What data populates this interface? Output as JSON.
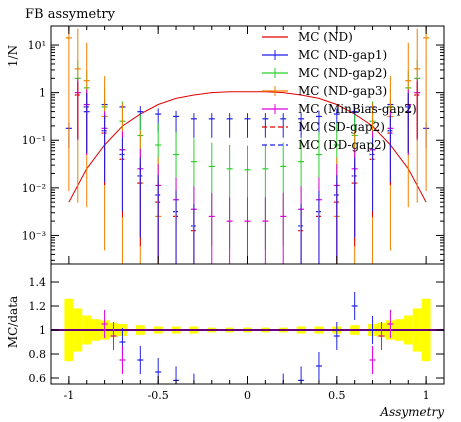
{
  "chart_data": {
    "type": "scatter",
    "title": "FB assymetry",
    "xlabel": "Assymetry",
    "ylabel_top": "1/N",
    "ylabel_bottom": "MC/data",
    "x_range": [
      -1.1,
      1.1
    ],
    "y_range_top_log10": [
      -3.6,
      1.4
    ],
    "y_range_bottom": [
      0.55,
      1.55
    ],
    "x_ticks": [
      "-1",
      "-0.5",
      "0",
      "0.5",
      "1"
    ],
    "y_ticks_top": [
      {
        "label": "10⁻³",
        "log": -3
      },
      {
        "label": "10⁻²",
        "log": -2
      },
      {
        "label": "10⁻¹",
        "log": -1
      },
      {
        "label": "1",
        "log": 0
      },
      {
        "label": "10¹",
        "log": 1
      }
    ],
    "y_ticks_bottom": [
      "0.6",
      "0.8",
      "1",
      "1.2",
      "1.4"
    ],
    "legend": [
      {
        "name": "MC (ND)",
        "color": "#e00000",
        "dash": false
      },
      {
        "name": "MC (ND-gap1)",
        "color": "#1f1fe6",
        "dash": false
      },
      {
        "name": "MC (ND-gap2)",
        "color": "#2ad02a",
        "dash": false
      },
      {
        "name": "MC (ND-gap3)",
        "color": "#f08000",
        "dash": false
      },
      {
        "name": "MC (MinBias-gap2)",
        "color": "#e000e0",
        "dash": false
      },
      {
        "name": "MC (SD-gap2)",
        "color": "#e00000",
        "dash": true
      },
      {
        "name": "MC (DD-gap2)",
        "color": "#1f1fe6",
        "dash": true
      }
    ],
    "series": [
      {
        "name": "MC (ND)",
        "x": [
          -1.0,
          -0.9,
          -0.8,
          -0.7,
          -0.6,
          -0.5,
          -0.4,
          -0.3,
          -0.2,
          -0.1,
          0.0,
          0.1,
          0.2,
          0.3,
          0.4,
          0.5,
          0.6,
          0.7,
          0.8,
          0.9,
          1.0
        ],
        "log10y": [
          -2.3,
          -1.6,
          -1.1,
          -0.7,
          -0.45,
          -0.25,
          -0.12,
          -0.05,
          0.0,
          0.02,
          0.02,
          0.02,
          0.0,
          -0.05,
          -0.12,
          -0.25,
          -0.45,
          -0.7,
          -1.1,
          -1.6,
          -2.3
        ]
      },
      {
        "name": "MC (ND-gap1)",
        "x": [
          -1.0,
          -0.9,
          -0.8,
          -0.7,
          -0.6,
          -0.5,
          -0.4,
          -0.3,
          -0.2,
          -0.1,
          0.0,
          0.1,
          0.2,
          0.3,
          0.4,
          0.5,
          0.6,
          0.7,
          0.8,
          0.9,
          1.0
        ],
        "log10y": [
          -0.75,
          -0.4,
          -0.25,
          -0.3,
          -0.4,
          -0.45,
          -0.5,
          -0.55,
          -0.55,
          -0.55,
          -0.55,
          -0.55,
          -0.55,
          -0.55,
          -0.5,
          -0.45,
          -0.4,
          -0.3,
          -0.25,
          -0.4,
          -0.75
        ]
      },
      {
        "name": "MC (ND-gap2)",
        "x": [
          -0.95,
          -0.9,
          -0.8,
          -0.7,
          -0.6,
          -0.5,
          -0.4,
          -0.3,
          -0.2,
          -0.1,
          0.0,
          0.1,
          0.2,
          0.3,
          0.4,
          0.5,
          0.6,
          0.7,
          0.8,
          0.9,
          0.95
        ],
        "log10y": [
          0.3,
          0.1,
          -0.3,
          -0.6,
          -0.9,
          -1.1,
          -1.3,
          -1.45,
          -1.55,
          -1.6,
          -1.62,
          -1.6,
          -1.55,
          -1.45,
          -1.3,
          -1.1,
          -0.9,
          -0.6,
          -0.3,
          0.1,
          0.3
        ]
      },
      {
        "name": "MC (ND-gap3)",
        "x": [
          -1.0,
          -0.95,
          -0.9,
          -0.8,
          -0.7,
          -0.6,
          -0.5,
          0.5,
          0.6,
          0.7,
          0.8,
          0.9,
          0.95,
          1.0
        ],
        "log10y": [
          1.15,
          0.5,
          0.25,
          -0.5,
          -1.2,
          -1.9,
          -2.6,
          -2.6,
          -1.9,
          -1.2,
          -0.5,
          0.25,
          0.5,
          1.15
        ]
      },
      {
        "name": "MC (MinBias-gap2)",
        "x": [
          -0.95,
          -0.9,
          -0.8,
          -0.7,
          -0.6,
          -0.5,
          -0.4,
          -0.3,
          -0.2,
          -0.1,
          0.0,
          0.1,
          0.2,
          0.3,
          0.4,
          0.5,
          0.6,
          0.7,
          0.8,
          0.9,
          0.95
        ],
        "log10y": [
          0.0,
          -0.25,
          -0.75,
          -1.2,
          -1.6,
          -1.95,
          -2.25,
          -2.45,
          -2.6,
          -2.7,
          -2.7,
          -2.7,
          -2.6,
          -2.45,
          -2.25,
          -1.95,
          -1.6,
          -1.2,
          -0.75,
          -0.25,
          0.0
        ]
      },
      {
        "name": "MC (SD-gap2)",
        "x": [
          -0.95,
          -0.9,
          -0.8,
          -0.7,
          -0.6,
          -0.5,
          -0.4,
          -0.3,
          0.3,
          0.4,
          0.5,
          0.6,
          0.7,
          0.8,
          0.9,
          0.95
        ],
        "log10y": [
          -0.05,
          -0.3,
          -0.85,
          -1.4,
          -1.9,
          -2.3,
          -2.6,
          -2.9,
          -2.9,
          -2.6,
          -2.3,
          -1.9,
          -1.4,
          -0.85,
          -0.3,
          -0.05
        ]
      },
      {
        "name": "MC (DD-gap2)",
        "x": [
          -0.9,
          -0.8,
          -0.7,
          -0.6,
          -0.5,
          -0.4,
          -0.3,
          0.3,
          0.4,
          0.5,
          0.6,
          0.7,
          0.8,
          0.9
        ],
        "log10y": [
          -0.3,
          -0.8,
          -1.3,
          -1.75,
          -2.15,
          -2.5,
          -2.8,
          -2.8,
          -2.5,
          -2.15,
          -1.75,
          -1.3,
          -0.8,
          -0.3
        ]
      }
    ],
    "data_band": {
      "x": [
        -1.0,
        -0.95,
        -0.9,
        -0.85,
        -0.8,
        -0.75,
        -0.7,
        -0.6,
        -0.5,
        -0.4,
        -0.3,
        -0.2,
        -0.1,
        0.0,
        0.1,
        0.2,
        0.3,
        0.4,
        0.5,
        0.6,
        0.7,
        0.75,
        0.8,
        0.85,
        0.9,
        0.95,
        1.0
      ],
      "half_width": [
        0.26,
        0.18,
        0.12,
        0.09,
        0.08,
        0.06,
        0.05,
        0.04,
        0.03,
        0.03,
        0.03,
        0.02,
        0.02,
        0.02,
        0.02,
        0.02,
        0.03,
        0.03,
        0.03,
        0.04,
        0.05,
        0.06,
        0.08,
        0.09,
        0.12,
        0.18,
        0.26
      ],
      "color": "#ffff00"
    },
    "ratio_series": [
      {
        "name": "MC (ND-gap1)",
        "x": [
          -0.7,
          -0.6,
          -0.5,
          -0.4,
          -0.3,
          0.2,
          0.3,
          0.4,
          0.5,
          0.6,
          0.7
        ],
        "y": [
          0.9,
          0.75,
          0.65,
          0.58,
          0.52,
          0.52,
          0.58,
          0.7,
          0.95,
          1.2,
          1.0
        ]
      },
      {
        "name": "MC (MinBias-gap2)",
        "x": [
          -0.8,
          -0.75,
          -0.7,
          0.7,
          0.75,
          0.8
        ],
        "y": [
          1.05,
          0.95,
          0.75,
          0.75,
          0.95,
          1.05
        ]
      }
    ]
  }
}
